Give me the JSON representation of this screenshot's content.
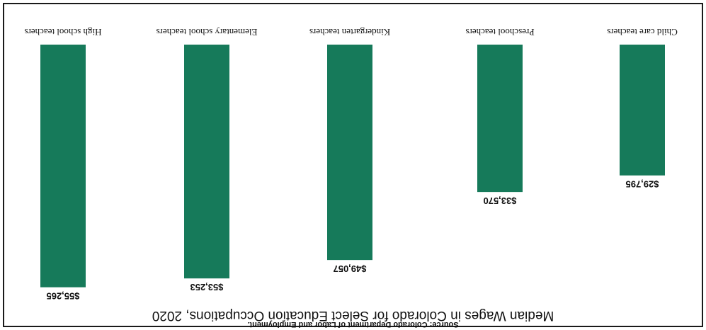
{
  "chart_data": {
    "type": "bar",
    "title": "Median Wages in Colorado for Select Education Occupations, 2020",
    "source": "Source: Colorado Department of Labor and Employment.",
    "categories": [
      "High school teachers",
      "Elementary school teachers",
      "Kindergarten teachers",
      "Preschool teachers",
      "Child care teachers"
    ],
    "values": [
      55265,
      53253,
      49057,
      33570,
      29795
    ],
    "value_labels": [
      "$55,265",
      "$53,253",
      "$49,057",
      "$33,570",
      "$29,795"
    ],
    "ylim": [
      0,
      60000
    ],
    "grid": false,
    "legend": "none",
    "orientation": "rotated-180",
    "colors": {
      "bar": "#167a5a"
    }
  }
}
